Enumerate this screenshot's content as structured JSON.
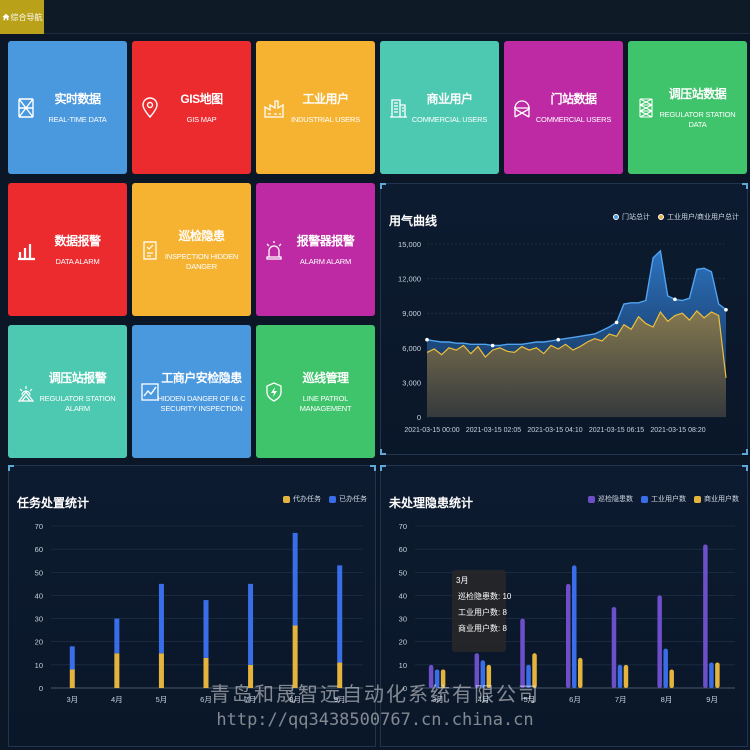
{
  "nav": {
    "home_label": "综合导航"
  },
  "tiles": [
    {
      "cn": "实时数据",
      "en": "REAL-TIME DATA",
      "color": "#4a98de",
      "icon": "tower-icon"
    },
    {
      "cn": "GIS地图",
      "en": "GIS MAP",
      "color": "#ec2b2f",
      "icon": "map-pin-icon"
    },
    {
      "cn": "工业用户",
      "en": "INDUSTRIAL USERS",
      "color": "#f6b332",
      "icon": "factory-icon"
    },
    {
      "cn": "商业用户",
      "en": "COMMERCIAL USERS",
      "color": "#4dc9b1",
      "icon": "building-icon"
    },
    {
      "cn": "门站数据",
      "en": "COMMERCIAL USERS",
      "color": "#bd2aa4",
      "icon": "gate-station-icon"
    },
    {
      "cn": "调压站数据",
      "en": "REGULATOR STATION DATA",
      "color": "#3fc36b",
      "icon": "regulator-tower-icon"
    },
    {
      "cn": "数据报警",
      "en": "DATA ALARM",
      "color": "#ec2b2f",
      "icon": "bar-chart-icon"
    },
    {
      "cn": "巡检隐患",
      "en": "INSPECTION HIDDEN DANGER",
      "color": "#f6b332",
      "icon": "clipboard-icon"
    },
    {
      "cn": "报警器报警",
      "en": "ALARM ALARM",
      "color": "#bd2aa4",
      "icon": "siren-icon"
    },
    {
      "cn": "调压站报警",
      "en": "REGULATOR STATION ALARM",
      "color": "#4dc9b1",
      "icon": "alarm-station-icon"
    },
    {
      "cn": "工商户安检隐患",
      "en": "HIDDEN DANGER OF I& C SECURITY INSPECTION",
      "color": "#4a98de",
      "icon": "chart-check-icon"
    },
    {
      "cn": "巡线管理",
      "en": "LINE PATROL MANAGEMENT",
      "color": "#3fc36b",
      "icon": "shield-bolt-icon"
    }
  ],
  "gas_panel": {
    "title": "用气曲线",
    "legend": [
      {
        "name": "门站总计",
        "color": "#4a98de"
      },
      {
        "name": "工业用户/商业用户总计",
        "color": "#e4b43c"
      }
    ]
  },
  "task_panel": {
    "title": "任务处置统计",
    "legend": [
      {
        "name": "代办任务",
        "color": "#e4b43c"
      },
      {
        "name": "已办任务",
        "color": "#3a6ee8"
      }
    ]
  },
  "danger_panel": {
    "title": "未处理隐患统计",
    "legend": [
      {
        "name": "巡检隐患数",
        "color": "#6c4fc9"
      },
      {
        "name": "工业用户数",
        "color": "#3a6ee8"
      },
      {
        "name": "商业用户数",
        "color": "#e4b43c"
      }
    ],
    "tooltip": {
      "month": "3月",
      "rows": [
        {
          "text": "巡检隐患数: 10",
          "color": "#6c4fc9"
        },
        {
          "text": "工业用户数: 8",
          "color": "#3a6ee8"
        },
        {
          "text": "商业用户数: 8",
          "color": "#e4b43c"
        }
      ]
    }
  },
  "chart_data": [
    {
      "type": "area",
      "title": "用气曲线",
      "x_ticks": [
        "2021-03-15 00:00",
        "2021-03-15 02:05",
        "2021-03-15 04:10",
        "2021-03-15 06:15",
        "2021-03-15 08:20"
      ],
      "y_ticks": [
        "0",
        "3,000",
        "6,000",
        "9,000",
        "12,000",
        "15,000"
      ],
      "ylim": [
        0,
        15000
      ],
      "series": [
        {
          "name": "门站总计",
          "values": [
            6700,
            6600,
            6500,
            6500,
            6400,
            6400,
            6300,
            6300,
            6300,
            6200,
            6200,
            6300,
            6300,
            6300,
            6400,
            6500,
            6500,
            6600,
            6700,
            6800,
            6900,
            7000,
            7100,
            7200,
            7500,
            7800,
            8200,
            9800,
            9900,
            9900,
            10100,
            13800,
            14400,
            10500,
            10200,
            10100,
            10300,
            12800,
            12900,
            12600,
            9800,
            9300
          ]
        },
        {
          "name": "工业用户/商业用户总计",
          "values": [
            5600,
            5900,
            5400,
            6000,
            5800,
            6200,
            5500,
            6100,
            5200,
            5800,
            6000,
            5700,
            5600,
            6100,
            5800,
            6000,
            5500,
            6200,
            5900,
            6300,
            5800,
            6100,
            6500,
            6800,
            6600,
            7200,
            7000,
            8000,
            7600,
            8700,
            8100,
            7800,
            9100,
            8300,
            8800,
            9000,
            8400,
            9200,
            8600,
            9100,
            8800,
            3400
          ]
        }
      ]
    },
    {
      "type": "bar",
      "title": "任务处置统计",
      "categories": [
        "3月",
        "4月",
        "5月",
        "6月",
        "7月",
        "8月",
        "9月"
      ],
      "y_ticks": [
        0,
        10,
        20,
        30,
        40,
        50,
        60,
        70
      ],
      "ylim": [
        0,
        70
      ],
      "stacked": true,
      "series": [
        {
          "name": "代办任务",
          "values": [
            8,
            15,
            15,
            13,
            10,
            27,
            11
          ]
        },
        {
          "name": "已办任务",
          "values": [
            10,
            15,
            30,
            25,
            35,
            40,
            42
          ]
        }
      ]
    },
    {
      "type": "bar",
      "title": "未处理隐患统计",
      "categories": [
        "3月",
        "4月",
        "5月",
        "6月",
        "7月",
        "8月",
        "9月"
      ],
      "y_ticks": [
        0,
        10,
        20,
        30,
        40,
        50,
        60,
        70
      ],
      "ylim": [
        0,
        70
      ],
      "series": [
        {
          "name": "巡检隐患数",
          "values": [
            10,
            15,
            30,
            45,
            35,
            40,
            62
          ]
        },
        {
          "name": "工业用户数",
          "values": [
            8,
            12,
            10,
            53,
            10,
            17,
            11
          ]
        },
        {
          "name": "商业用户数",
          "values": [
            8,
            10,
            15,
            13,
            10,
            8,
            11
          ]
        }
      ]
    }
  ],
  "watermark": {
    "line1": "青岛和晟智远自动化系统有限公司",
    "line2": "http://qq3438500767.cn.china.cn"
  }
}
